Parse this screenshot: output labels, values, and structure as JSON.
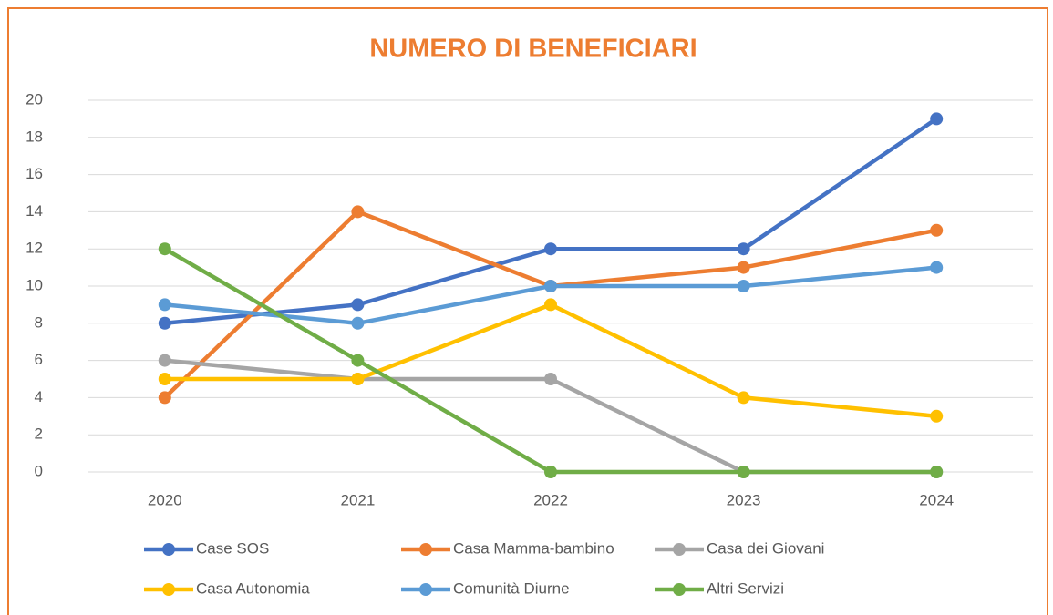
{
  "chart_data": {
    "type": "line",
    "title": "NUMERO DI BENEFICIARI",
    "categories": [
      "2020",
      "2021",
      "2022",
      "2023",
      "2024"
    ],
    "series": [
      {
        "name": "Case SOS",
        "color": "#4472c4",
        "values": [
          8,
          9,
          12,
          12,
          19
        ]
      },
      {
        "name": "Casa Mamma-bambino",
        "color": "#ed7d31",
        "values": [
          4,
          14,
          10,
          11,
          13
        ]
      },
      {
        "name": "Casa dei Giovani",
        "color": "#a5a5a5",
        "values": [
          6,
          5,
          5,
          0,
          0
        ]
      },
      {
        "name": "Casa Autonomia",
        "color": "#ffc000",
        "values": [
          5,
          5,
          9,
          4,
          3
        ]
      },
      {
        "name": "Comunità Diurne",
        "color": "#5b9bd5",
        "values": [
          9,
          8,
          10,
          10,
          11
        ]
      },
      {
        "name": "Altri Servizi",
        "color": "#70ad47",
        "values": [
          12,
          6,
          0,
          0,
          0
        ]
      }
    ],
    "ylim": [
      0,
      20
    ],
    "yticks": [
      0,
      2,
      4,
      6,
      8,
      10,
      12,
      14,
      16,
      18,
      20
    ],
    "grid": true,
    "legend": "bottom"
  }
}
